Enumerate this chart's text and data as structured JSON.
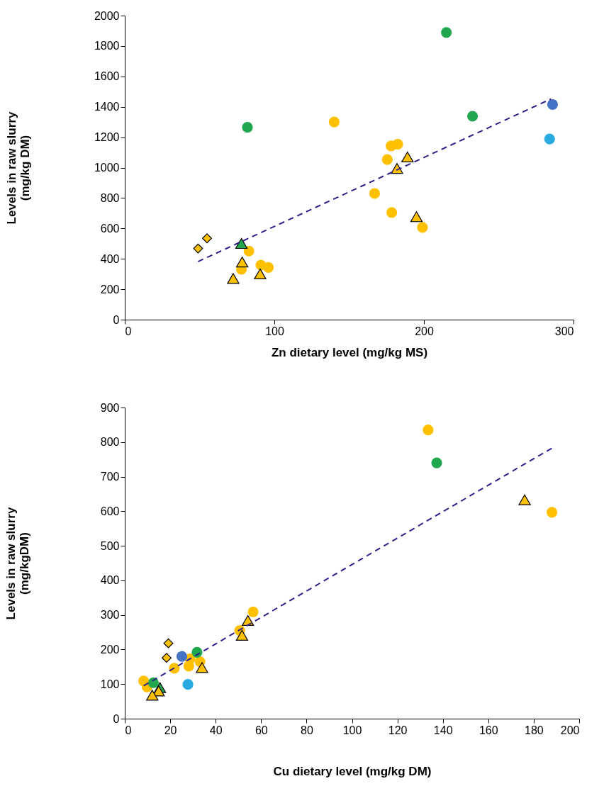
{
  "chart_data": [
    {
      "type": "scatter",
      "xlabel": "Zn dietary level (mg/kg MS)",
      "ylabel": "Levels in raw slurry\n(mg/kg DM)",
      "xlim": [
        0,
        300
      ],
      "xticks": [
        0,
        100,
        200,
        300
      ],
      "ylim": [
        0,
        2000
      ],
      "yticks": [
        0,
        200,
        400,
        600,
        800,
        1000,
        1200,
        1400,
        1600,
        1800,
        2000
      ],
      "grid": false,
      "series": [
        {
          "color": "#ffc000",
          "marker": "circle",
          "x": [
            140,
            178,
            182.5,
            175.5,
            167,
            178.5,
            199,
            83,
            78,
            91,
            96
          ],
          "values": [
            1300,
            1143,
            1154,
            1053,
            830,
            705,
            607,
            451,
            331,
            359,
            343
          ]
        },
        {
          "color": "#ffc000",
          "marker": "triangle",
          "x": [
            189,
            182,
            195,
            78.5,
            90.5,
            72.5
          ],
          "values": [
            1070,
            995,
            677,
            379,
            301,
            271
          ]
        },
        {
          "color": "#ffc000",
          "marker": "diamond",
          "x": [
            49,
            55
          ],
          "values": [
            468,
            535
          ]
        },
        {
          "color": "#21a84f",
          "marker": "circle",
          "x": [
            215,
            82,
            232.5
          ],
          "values": [
            1889,
            1265,
            1338
          ]
        },
        {
          "color": "#21a84f",
          "marker": "triangle",
          "x": [
            78
          ],
          "values": [
            501
          ]
        },
        {
          "color": "#4472c4",
          "marker": "circle",
          "x": [
            286
          ],
          "values": [
            1415
          ]
        },
        {
          "color": "#29abe2",
          "marker": "circle",
          "x": [
            284
          ],
          "values": [
            1188
          ]
        },
        {
          "type": "line",
          "color": "#2e1f8a",
          "line_style": "dashed",
          "x": [
            49,
            285
          ],
          "values": [
            382,
            1452
          ]
        }
      ]
    },
    {
      "type": "scatter",
      "xlabel": "Cu dietary level (mg/kg DM)",
      "ylabel": "Levels in raw slurry\n(mg/kgDM)",
      "xlim": [
        0,
        200
      ],
      "xticks": [
        0,
        20,
        40,
        60,
        80,
        100,
        120,
        140,
        160,
        180,
        200
      ],
      "ylim": [
        0,
        900
      ],
      "yticks": [
        0,
        100,
        200,
        300,
        400,
        500,
        600,
        700,
        800,
        900
      ],
      "grid": false,
      "series": [
        {
          "color": "#ffc000",
          "marker": "circle",
          "x": [
            56.5,
            50.6,
            28.7,
            33.1,
            28.2,
            21.8,
            8.3,
            9.8,
            133.5,
            188
          ],
          "values": [
            309,
            255,
            173,
            165,
            152,
            146,
            109,
            92,
            835,
            597
          ]
        },
        {
          "color": "#21a84f",
          "marker": "triangle",
          "x": [
            15.5
          ],
          "values": [
            90
          ]
        },
        {
          "color": "#ffc000",
          "marker": "triangle",
          "x": [
            54.2,
            51.6,
            34,
            14.9,
            12.1,
            176
          ],
          "values": [
            284,
            241,
            148,
            80,
            68,
            633
          ]
        },
        {
          "color": "#ffc000",
          "marker": "diamond",
          "x": [
            19.2,
            18.4
          ],
          "values": [
            218,
            176
          ]
        },
        {
          "color": "#21a84f",
          "marker": "circle",
          "x": [
            31.8,
            12.6,
            137.3
          ],
          "values": [
            192,
            104,
            740
          ]
        },
        {
          "color": "#4472c4",
          "marker": "circle",
          "x": [
            25.1
          ],
          "values": [
            180
          ]
        },
        {
          "color": "#29abe2",
          "marker": "circle",
          "x": [
            27.8
          ],
          "values": [
            99
          ]
        },
        {
          "type": "line",
          "color": "#2e1f8a",
          "line_style": "dashed",
          "x": [
            8.3,
            188.4
          ],
          "values": [
            95,
            784
          ]
        }
      ]
    }
  ]
}
